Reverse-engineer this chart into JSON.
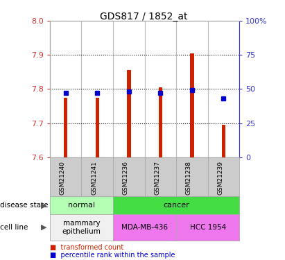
{
  "title": "GDS817 / 1852_at",
  "samples": [
    "GSM21240",
    "GSM21241",
    "GSM21236",
    "GSM21237",
    "GSM21238",
    "GSM21239"
  ],
  "bar_bottom": 7.6,
  "bar_tops": [
    7.775,
    7.775,
    7.855,
    7.805,
    7.905,
    7.695
  ],
  "percentile_values": [
    47,
    47,
    48,
    47,
    49,
    43
  ],
  "ylim_left": [
    7.6,
    8.0
  ],
  "ylim_right": [
    0,
    100
  ],
  "yticks_left": [
    7.6,
    7.7,
    7.8,
    7.9,
    8.0
  ],
  "yticks_right": [
    0,
    25,
    50,
    75,
    100
  ],
  "bar_color": "#cc2200",
  "dot_color": "#0000cc",
  "tick_label_color_left": "#cc3333",
  "tick_label_color_right": "#3333cc",
  "disease_state_normal": "normal",
  "disease_state_cancer": "cancer",
  "cell_line_normal": "mammary\nepithelium",
  "cell_line_mda": "MDA-MB-436",
  "cell_line_hcc": "HCC 1954",
  "normal_light_green": "#b3ffb3",
  "cancer_green": "#44dd44",
  "cell_normal_white": "#f0f0f0",
  "cell_pink": "#ee77ee",
  "xtick_bg": "#cccccc",
  "legend_red_label": "transformed count",
  "legend_blue_label": "percentile rank within the sample",
  "bar_width": 0.12
}
